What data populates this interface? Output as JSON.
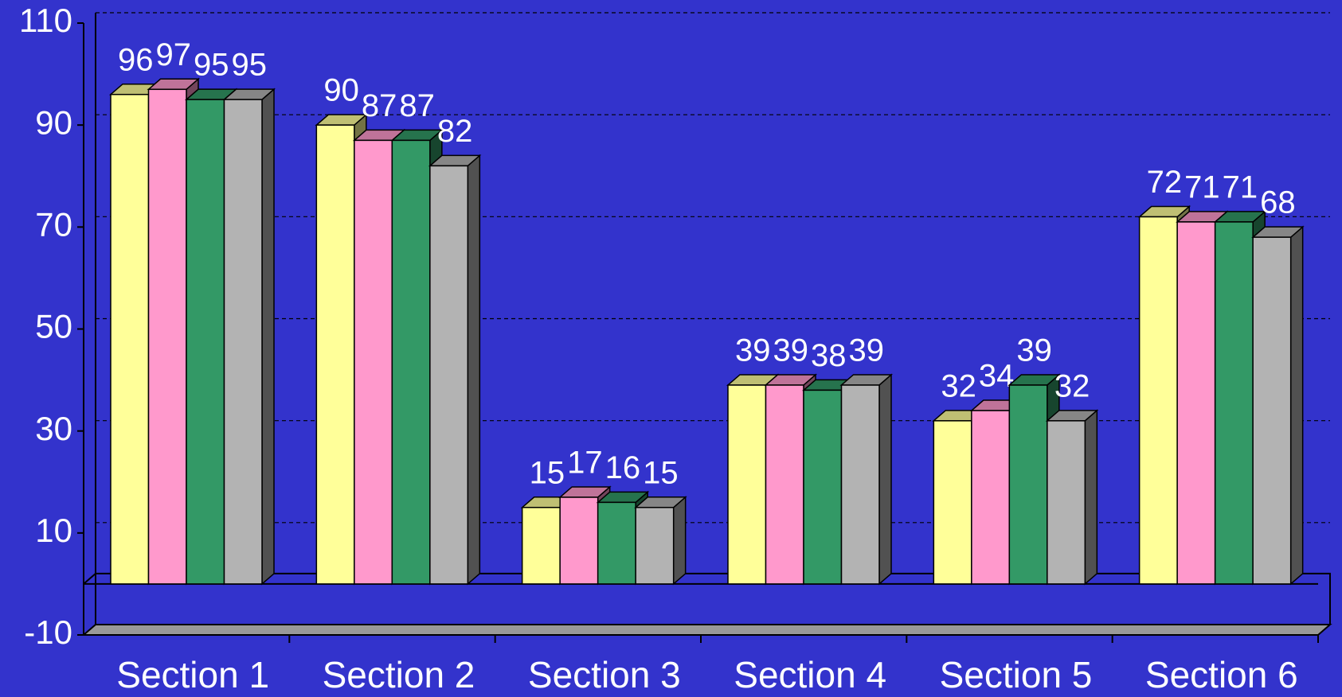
{
  "chart_data": {
    "type": "bar3d",
    "categories": [
      "Section 1",
      "Section 2",
      "Section 3",
      "Section 4",
      "Section 5",
      "Section 6"
    ],
    "series": [
      {
        "color": "#ffff99",
        "values": [
          96,
          90,
          15,
          39,
          32,
          72
        ]
      },
      {
        "color": "#ff99cc",
        "values": [
          97,
          87,
          17,
          39,
          34,
          71
        ]
      },
      {
        "color": "#339966",
        "values": [
          95,
          87,
          16,
          38,
          39,
          71
        ]
      },
      {
        "color": "#b3b3b3",
        "values": [
          95,
          82,
          15,
          39,
          32,
          68
        ]
      }
    ],
    "ylim": [
      -10,
      110
    ],
    "yticks": [
      -10,
      10,
      30,
      50,
      70,
      90,
      110
    ],
    "grid": true
  }
}
